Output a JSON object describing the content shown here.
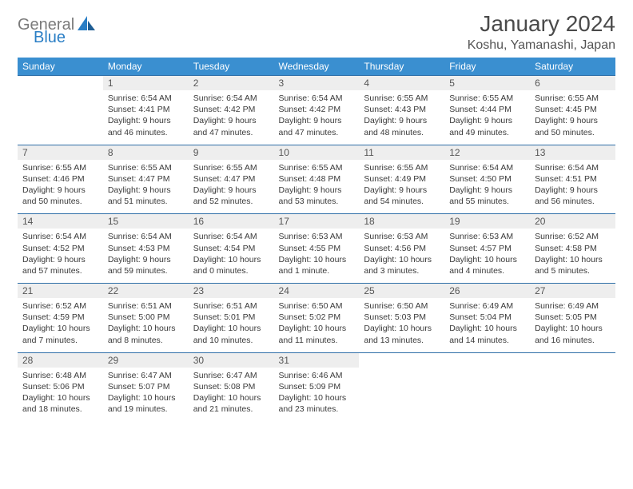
{
  "brand": {
    "part1": "General",
    "part2": "Blue"
  },
  "title": "January 2024",
  "location": "Koshu, Yamanashi, Japan",
  "colors": {
    "header_bg": "#3a8fd0",
    "header_text": "#ffffff",
    "daynum_bg": "#eeeeee",
    "rule": "#2f6fa8",
    "brand_gray": "#7a7a7a",
    "brand_blue": "#2a7ec5",
    "text": "#3a3a3a",
    "background": "#ffffff"
  },
  "typography": {
    "title_fontsize": 28,
    "location_fontsize": 16,
    "weekday_fontsize": 12,
    "daynum_fontsize": 12,
    "cell_fontsize": 10.5
  },
  "weekdays": [
    "Sunday",
    "Monday",
    "Tuesday",
    "Wednesday",
    "Thursday",
    "Friday",
    "Saturday"
  ],
  "weeks": [
    [
      null,
      {
        "n": "1",
        "sr": "6:54 AM",
        "ss": "4:41 PM",
        "dl": "9 hours and 46 minutes."
      },
      {
        "n": "2",
        "sr": "6:54 AM",
        "ss": "4:42 PM",
        "dl": "9 hours and 47 minutes."
      },
      {
        "n": "3",
        "sr": "6:54 AM",
        "ss": "4:42 PM",
        "dl": "9 hours and 47 minutes."
      },
      {
        "n": "4",
        "sr": "6:55 AM",
        "ss": "4:43 PM",
        "dl": "9 hours and 48 minutes."
      },
      {
        "n": "5",
        "sr": "6:55 AM",
        "ss": "4:44 PM",
        "dl": "9 hours and 49 minutes."
      },
      {
        "n": "6",
        "sr": "6:55 AM",
        "ss": "4:45 PM",
        "dl": "9 hours and 50 minutes."
      }
    ],
    [
      {
        "n": "7",
        "sr": "6:55 AM",
        "ss": "4:46 PM",
        "dl": "9 hours and 50 minutes."
      },
      {
        "n": "8",
        "sr": "6:55 AM",
        "ss": "4:47 PM",
        "dl": "9 hours and 51 minutes."
      },
      {
        "n": "9",
        "sr": "6:55 AM",
        "ss": "4:47 PM",
        "dl": "9 hours and 52 minutes."
      },
      {
        "n": "10",
        "sr": "6:55 AM",
        "ss": "4:48 PM",
        "dl": "9 hours and 53 minutes."
      },
      {
        "n": "11",
        "sr": "6:55 AM",
        "ss": "4:49 PM",
        "dl": "9 hours and 54 minutes."
      },
      {
        "n": "12",
        "sr": "6:54 AM",
        "ss": "4:50 PM",
        "dl": "9 hours and 55 minutes."
      },
      {
        "n": "13",
        "sr": "6:54 AM",
        "ss": "4:51 PM",
        "dl": "9 hours and 56 minutes."
      }
    ],
    [
      {
        "n": "14",
        "sr": "6:54 AM",
        "ss": "4:52 PM",
        "dl": "9 hours and 57 minutes."
      },
      {
        "n": "15",
        "sr": "6:54 AM",
        "ss": "4:53 PM",
        "dl": "9 hours and 59 minutes."
      },
      {
        "n": "16",
        "sr": "6:54 AM",
        "ss": "4:54 PM",
        "dl": "10 hours and 0 minutes."
      },
      {
        "n": "17",
        "sr": "6:53 AM",
        "ss": "4:55 PM",
        "dl": "10 hours and 1 minute."
      },
      {
        "n": "18",
        "sr": "6:53 AM",
        "ss": "4:56 PM",
        "dl": "10 hours and 3 minutes."
      },
      {
        "n": "19",
        "sr": "6:53 AM",
        "ss": "4:57 PM",
        "dl": "10 hours and 4 minutes."
      },
      {
        "n": "20",
        "sr": "6:52 AM",
        "ss": "4:58 PM",
        "dl": "10 hours and 5 minutes."
      }
    ],
    [
      {
        "n": "21",
        "sr": "6:52 AM",
        "ss": "4:59 PM",
        "dl": "10 hours and 7 minutes."
      },
      {
        "n": "22",
        "sr": "6:51 AM",
        "ss": "5:00 PM",
        "dl": "10 hours and 8 minutes."
      },
      {
        "n": "23",
        "sr": "6:51 AM",
        "ss": "5:01 PM",
        "dl": "10 hours and 10 minutes."
      },
      {
        "n": "24",
        "sr": "6:50 AM",
        "ss": "5:02 PM",
        "dl": "10 hours and 11 minutes."
      },
      {
        "n": "25",
        "sr": "6:50 AM",
        "ss": "5:03 PM",
        "dl": "10 hours and 13 minutes."
      },
      {
        "n": "26",
        "sr": "6:49 AM",
        "ss": "5:04 PM",
        "dl": "10 hours and 14 minutes."
      },
      {
        "n": "27",
        "sr": "6:49 AM",
        "ss": "5:05 PM",
        "dl": "10 hours and 16 minutes."
      }
    ],
    [
      {
        "n": "28",
        "sr": "6:48 AM",
        "ss": "5:06 PM",
        "dl": "10 hours and 18 minutes."
      },
      {
        "n": "29",
        "sr": "6:47 AM",
        "ss": "5:07 PM",
        "dl": "10 hours and 19 minutes."
      },
      {
        "n": "30",
        "sr": "6:47 AM",
        "ss": "5:08 PM",
        "dl": "10 hours and 21 minutes."
      },
      {
        "n": "31",
        "sr": "6:46 AM",
        "ss": "5:09 PM",
        "dl": "10 hours and 23 minutes."
      },
      null,
      null,
      null
    ]
  ],
  "labels": {
    "sunrise": "Sunrise:",
    "sunset": "Sunset:",
    "daylight": "Daylight:"
  }
}
